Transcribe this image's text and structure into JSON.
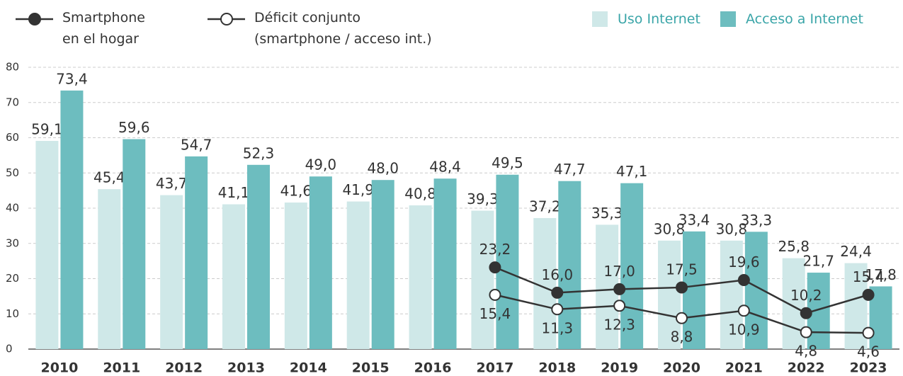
{
  "chart_data": {
    "type": "bar-line",
    "categories": [
      "2010",
      "2011",
      "2012",
      "2013",
      "2014",
      "2015",
      "2016",
      "2017",
      "2018",
      "2019",
      "2020",
      "2021",
      "2022",
      "2023"
    ],
    "ylim": [
      0,
      80
    ],
    "yticks": [
      0,
      10,
      20,
      30,
      40,
      50,
      60,
      70,
      80
    ],
    "grid": true,
    "series": [
      {
        "name": "Uso Internet",
        "kind": "bar",
        "color": "#cfe8e8",
        "values": [
          59.1,
          45.4,
          43.7,
          41.1,
          41.6,
          41.9,
          40.8,
          39.3,
          37.2,
          35.3,
          30.8,
          30.8,
          25.8,
          24.4
        ],
        "value_labels": [
          "59,1",
          "45,4",
          "43,7",
          "41,1",
          "41,6",
          "41,9",
          "40,8",
          "39,3",
          "37,2",
          "35,3",
          "30,8",
          "30,8",
          "25,8",
          "24,4"
        ]
      },
      {
        "name": "Acceso a Internet",
        "kind": "bar",
        "color": "#6dbdbf",
        "values": [
          73.4,
          59.6,
          54.7,
          52.3,
          49.0,
          48.0,
          48.4,
          49.5,
          47.7,
          47.1,
          33.4,
          33.3,
          21.7,
          17.8
        ],
        "value_labels": [
          "73,4",
          "59,6",
          "54,7",
          "52,3",
          "49,0",
          "48,0",
          "48,4",
          "49,5",
          "47,7",
          "47,1",
          "33,4",
          "33,3",
          "21,7",
          "17,8"
        ]
      },
      {
        "name": "Smartphone\nen el hogar",
        "kind": "line",
        "marker": "filled",
        "color": "#333333",
        "values": [
          null,
          null,
          null,
          null,
          null,
          null,
          null,
          23.2,
          16.0,
          17.0,
          17.5,
          19.6,
          10.2,
          15.4
        ],
        "value_labels": [
          null,
          null,
          null,
          null,
          null,
          null,
          null,
          "23,2",
          "16,0",
          "17,0",
          "17,5",
          "19,6",
          "10,2",
          "15,4"
        ]
      },
      {
        "name": "Déficit conjunto\n(smartphone / acceso int.)",
        "kind": "line",
        "marker": "open",
        "color": "#333333",
        "values": [
          null,
          null,
          null,
          null,
          null,
          null,
          null,
          15.4,
          11.3,
          12.3,
          8.8,
          10.9,
          4.8,
          4.6
        ],
        "value_labels": [
          null,
          null,
          null,
          null,
          null,
          null,
          null,
          "15,4",
          "11,3",
          "12,3",
          "8,8",
          "10,9",
          "4,8",
          "4,6"
        ]
      }
    ]
  }
}
